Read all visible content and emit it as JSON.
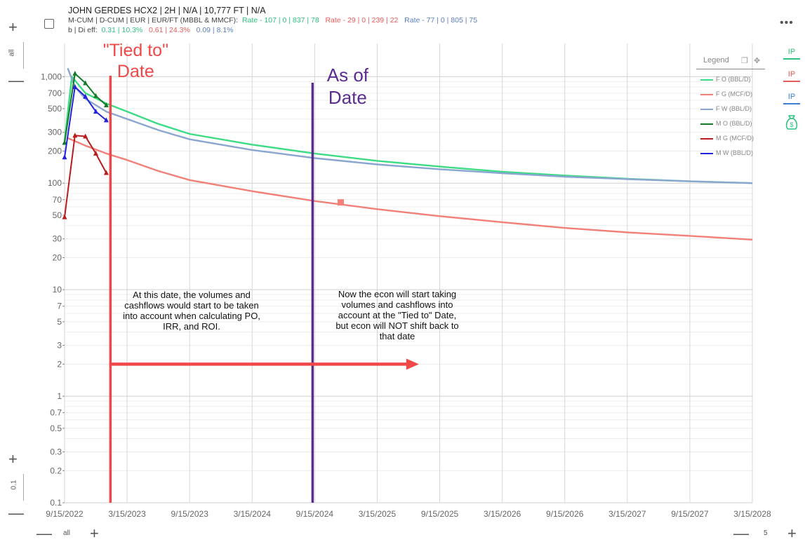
{
  "header": {
    "title": "JOHN GERDES HCX2 | 2H | N/A | 10,777 FT | N/A",
    "row2_label": "M-CUM | D-CUM | EUR | EUR/FT (MBBL & MMCF):",
    "row2_oil": "Rate - 107 | 0 | 837 | 78",
    "row2_gas": "Rate - 29 | 0 | 239 | 22",
    "row2_water": "Rate - 77 | 0 | 805 | 75",
    "row3_label": "b | Di eff:",
    "row3_oil": "0.31 | 10.3%",
    "row3_gas": "0.61 | 24.3%",
    "row3_water": "0.09 | 8.1%"
  },
  "controls": {
    "top_plus": "+",
    "top_minus": "—",
    "y_top_label": "all",
    "bottom_plus": "+",
    "bottom_minus": "—",
    "y_bottom_label": "0.1",
    "x_left_minus": "—",
    "x_left_label": "all",
    "x_left_plus": "+",
    "x_right_minus": "—",
    "x_right_label": "5",
    "x_right_plus": "+",
    "more": "•••"
  },
  "legend": {
    "title": "Legend",
    "items": [
      {
        "label": "F O (BBL/D)",
        "color": "#3ddc84"
      },
      {
        "label": "F G (MCF/D)",
        "color": "#f28078"
      },
      {
        "label": "F W (BBL/D)",
        "color": "#8aa6d0"
      },
      {
        "label": "M O (BBL/D)",
        "color": "#157a2a"
      },
      {
        "label": "M G (MCF/D)",
        "color": "#b81c1c"
      },
      {
        "label": "M W (BBL/D)",
        "color": "#2222dd"
      }
    ]
  },
  "side": {
    "ip_oil": "IP",
    "ip_oil_color": "#2ec27e",
    "ip_gas": "IP",
    "ip_gas_color": "#e85a5a",
    "ip_water": "IP",
    "ip_water_color": "#3a7fd0",
    "money_icon": "money-bag-icon"
  },
  "chart_data": {
    "type": "line",
    "y_scale": "log",
    "ylim": [
      0.1,
      1300
    ],
    "xlim": [
      "2022-09-15",
      "2028-03-15"
    ],
    "y_ticks": [
      "1,000",
      "700",
      "500",
      "300",
      "200",
      "100",
      "70",
      "50",
      "30",
      "20",
      "10",
      "7",
      "5",
      "3",
      "2",
      "1",
      "0.7",
      "0.5",
      "0.3",
      "0.2",
      "0.1"
    ],
    "y_tick_values": [
      1000,
      700,
      500,
      300,
      200,
      100,
      70,
      50,
      30,
      20,
      10,
      7,
      5,
      3,
      2,
      1,
      0.7,
      0.5,
      0.3,
      0.2,
      0.1
    ],
    "x_ticks": [
      "9/15/2022",
      "3/15/2023",
      "9/15/2023",
      "3/15/2024",
      "9/15/2024",
      "3/15/2025",
      "9/15/2025",
      "3/15/2026",
      "9/15/2026",
      "3/15/2027",
      "9/15/2027",
      "3/15/2028"
    ],
    "x_tick_months": [
      0,
      6,
      12,
      18,
      24,
      30,
      36,
      42,
      48,
      54,
      60,
      66
    ],
    "series": [
      {
        "name": "F O (BBL/D)",
        "color": "#3ddc84",
        "kind": "forecast",
        "x": [
          0,
          0.7,
          2,
          4,
          6,
          9,
          12,
          18,
          24,
          30,
          36,
          42,
          48,
          54,
          60,
          66
        ],
        "y": [
          250,
          1000,
          700,
          560,
          470,
          360,
          290,
          230,
          190,
          162,
          143,
          128,
          118,
          110,
          104,
          100
        ]
      },
      {
        "name": "F G (MCF/D)",
        "color": "#f28078",
        "kind": "forecast",
        "x": [
          0.3,
          2,
          4,
          6,
          9,
          12,
          18,
          24,
          30,
          36,
          42,
          48,
          54,
          60,
          66
        ],
        "y": [
          265,
          225,
          190,
          165,
          130,
          107,
          84,
          68,
          57,
          49,
          43,
          38,
          34.5,
          32,
          29.5
        ]
      },
      {
        "name": "F W (BBL/D)",
        "color": "#8aa6d0",
        "kind": "forecast",
        "x": [
          0.3,
          1,
          2,
          4,
          6,
          9,
          12,
          18,
          24,
          30,
          36,
          42,
          48,
          54,
          60,
          66
        ],
        "y": [
          1200,
          800,
          620,
          470,
          400,
          315,
          258,
          205,
          172,
          150,
          135,
          124,
          115,
          109,
          104,
          100
        ]
      },
      {
        "name": "M O (BBL/D)",
        "color": "#157a2a",
        "kind": "monthly",
        "x": [
          0,
          1,
          2,
          3,
          4
        ],
        "y": [
          240,
          1070,
          870,
          660,
          540
        ]
      },
      {
        "name": "M G (MCF/D)",
        "color": "#b81c1c",
        "kind": "monthly",
        "x": [
          0,
          1,
          2,
          3,
          4
        ],
        "y": [
          48,
          280,
          275,
          190,
          125
        ]
      },
      {
        "name": "M W (BBL/D)",
        "color": "#2222dd",
        "kind": "monthly",
        "x": [
          0,
          1,
          2,
          3,
          4
        ],
        "y": [
          175,
          800,
          650,
          470,
          390
        ]
      }
    ],
    "marker": {
      "x": 26.5,
      "y": 66,
      "color": "#f28078"
    },
    "annotations": {
      "tied_to_label": [
        "\"Tied to\"",
        "Date"
      ],
      "tied_to_month": 4.4,
      "tied_to_color": "#f04848",
      "as_of_label": [
        "As of",
        "Date"
      ],
      "as_of_month": 23.8,
      "as_of_color": "#5b2d8e",
      "arrow_y": 2,
      "arrow_end_month": 34,
      "note_left": [
        "At this date, the volumes and",
        "cashflows would start to be taken",
        "into account when calculating PO,",
        "IRR, and ROI."
      ],
      "note_right": [
        "Now the econ will start taking",
        "volumes and cashflows into",
        "account at the \"Tied to\" Date,",
        "but econ will NOT shift back to",
        "that date"
      ]
    }
  }
}
